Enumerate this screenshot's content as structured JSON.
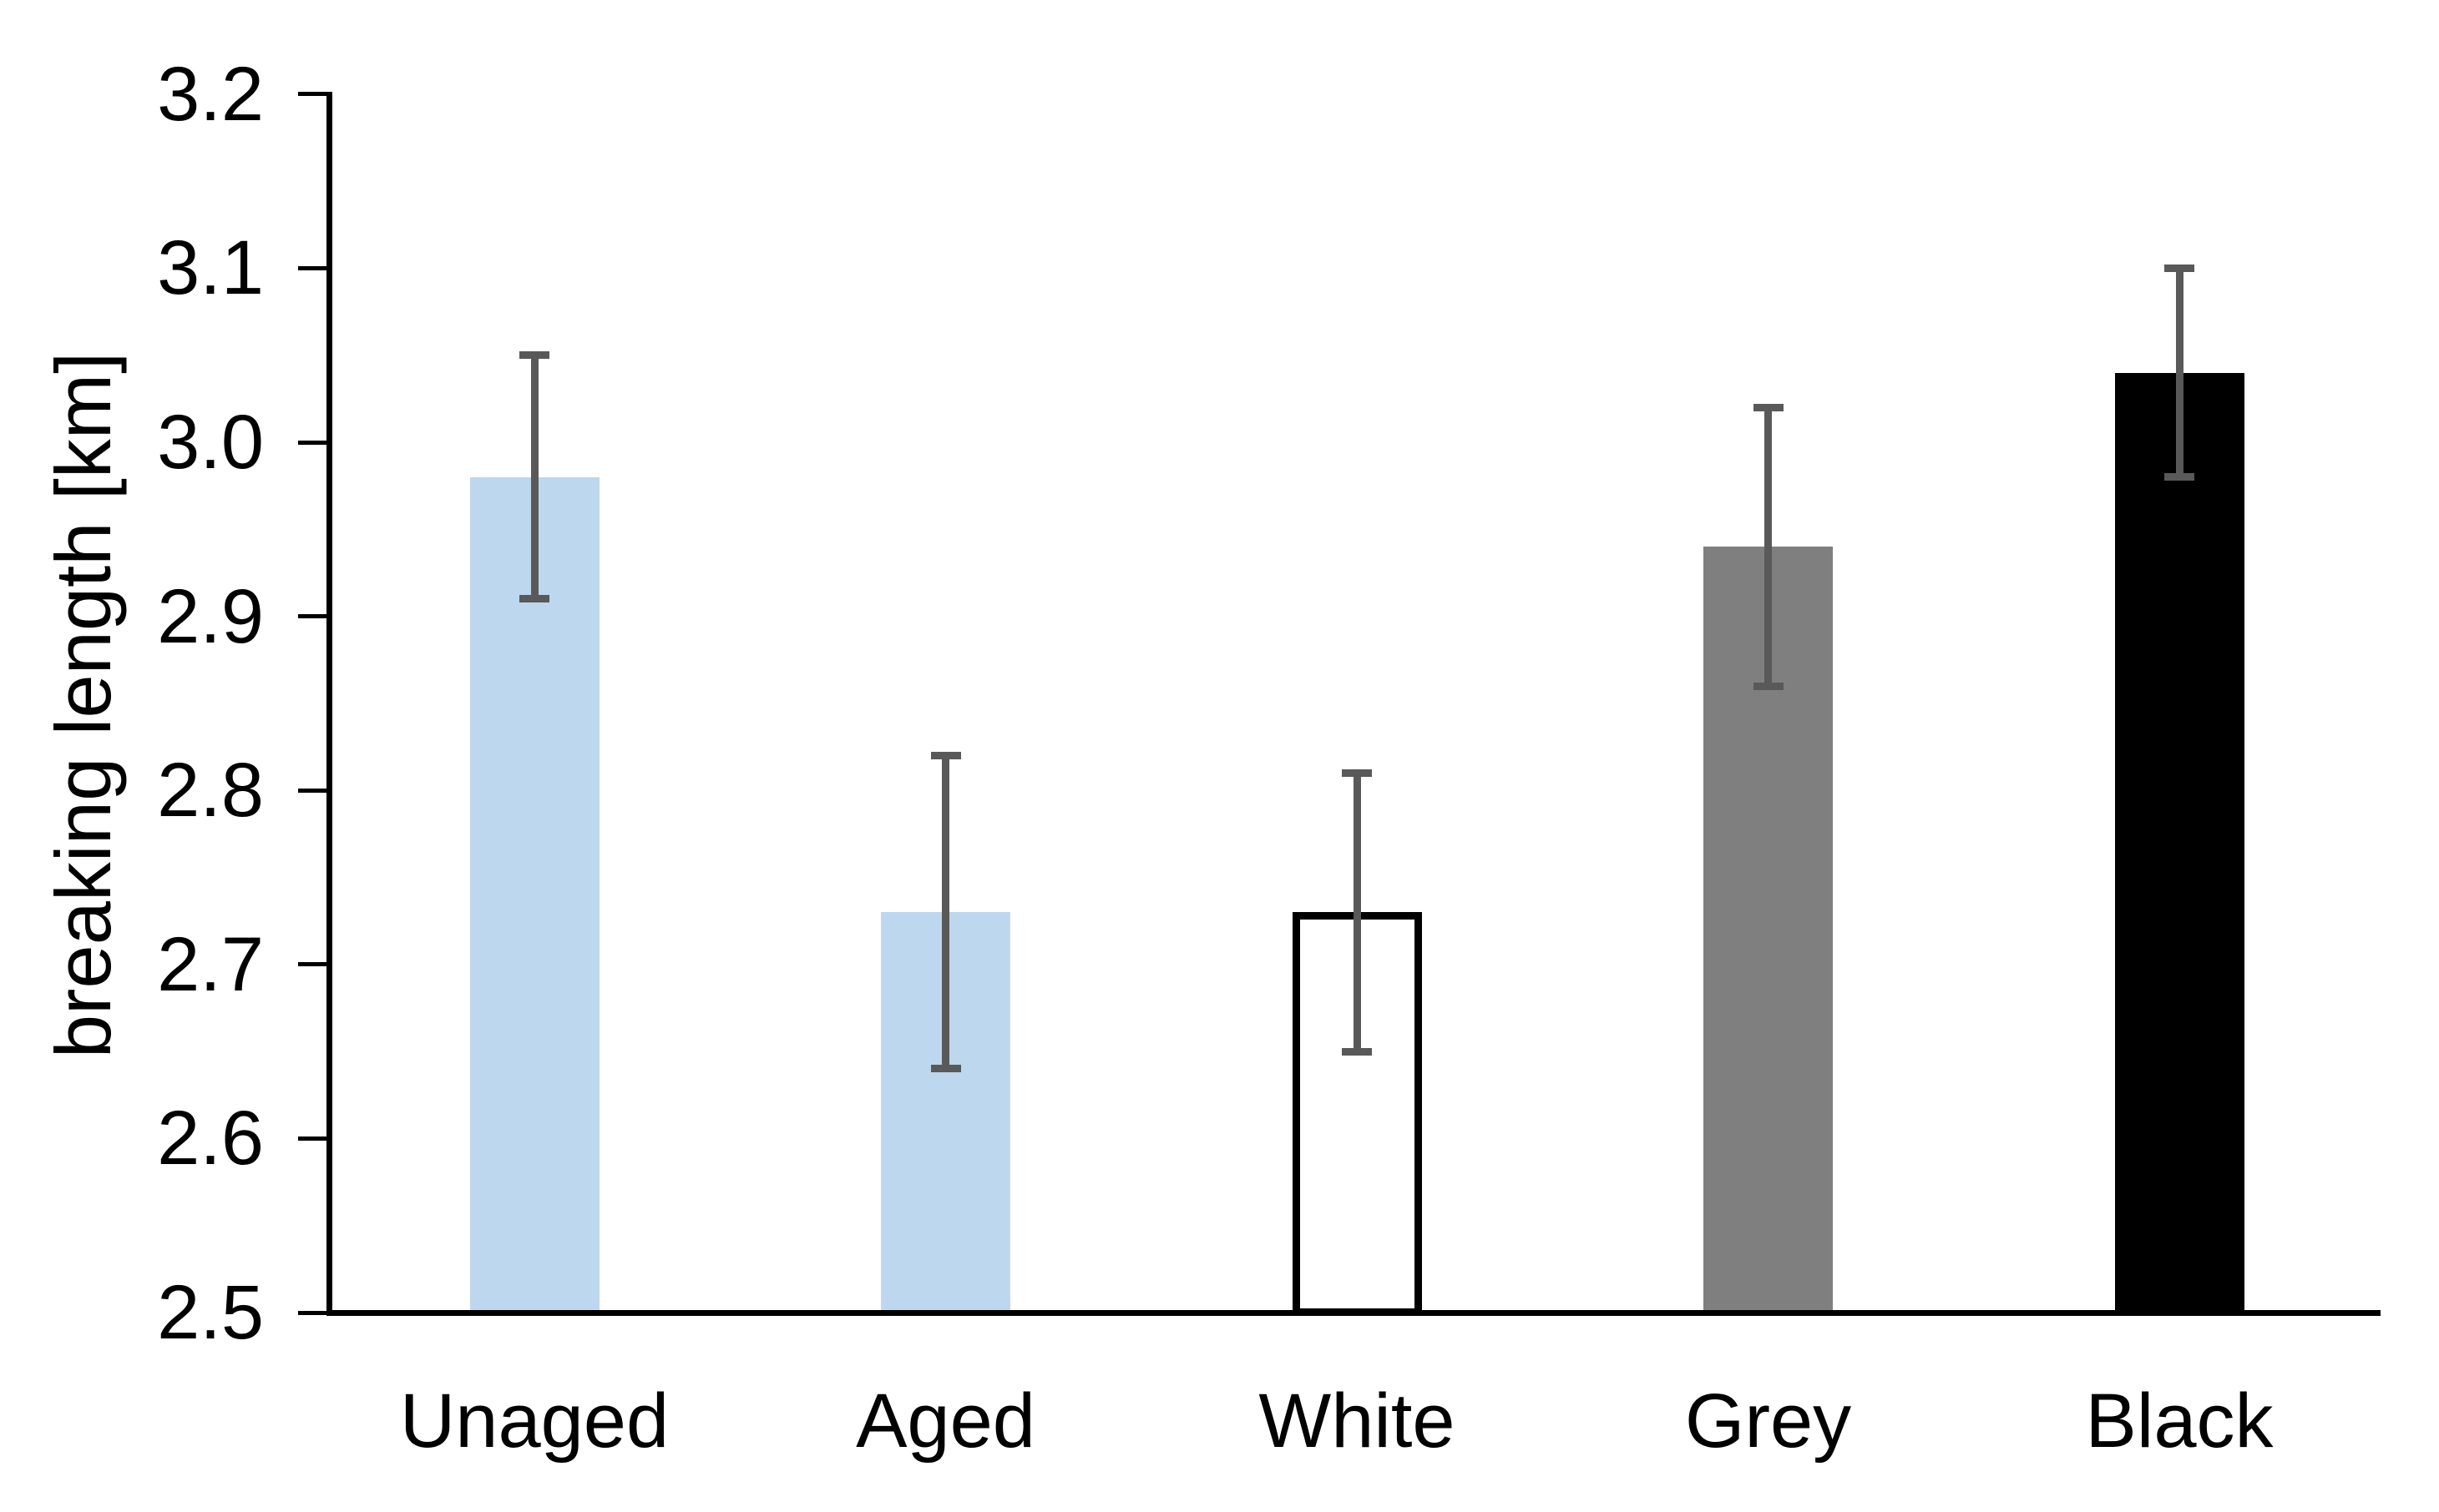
{
  "figure": {
    "background": "#ffffff",
    "axis_color": "#000000",
    "text_color": "#000000"
  },
  "chart_data": {
    "type": "bar",
    "title": "",
    "categories": [
      "Unaged",
      "Aged",
      "White",
      "Grey",
      "Black"
    ],
    "values": [
      2.98,
      2.73,
      2.73,
      2.94,
      3.04
    ],
    "error_low": [
      2.91,
      2.64,
      2.65,
      2.86,
      2.98
    ],
    "error_high": [
      3.05,
      2.82,
      2.81,
      3.02,
      3.1
    ],
    "xlabel": "",
    "ylabel": "breaking length [km]",
    "ylim": [
      2.5,
      3.2
    ],
    "yticks": [
      3.2,
      3.1,
      3.0,
      2.9,
      2.8,
      2.7,
      2.6,
      2.5
    ],
    "grid": false,
    "legend": false,
    "bar_colors": [
      "#BDD7EE",
      "#BDD7EE",
      "#FFFFFF",
      "#7F7F7F",
      "#000000"
    ],
    "bar_border_colors": [
      "none",
      "none",
      "#000000",
      "none",
      "none"
    ],
    "error_bar_color": "#595959"
  }
}
